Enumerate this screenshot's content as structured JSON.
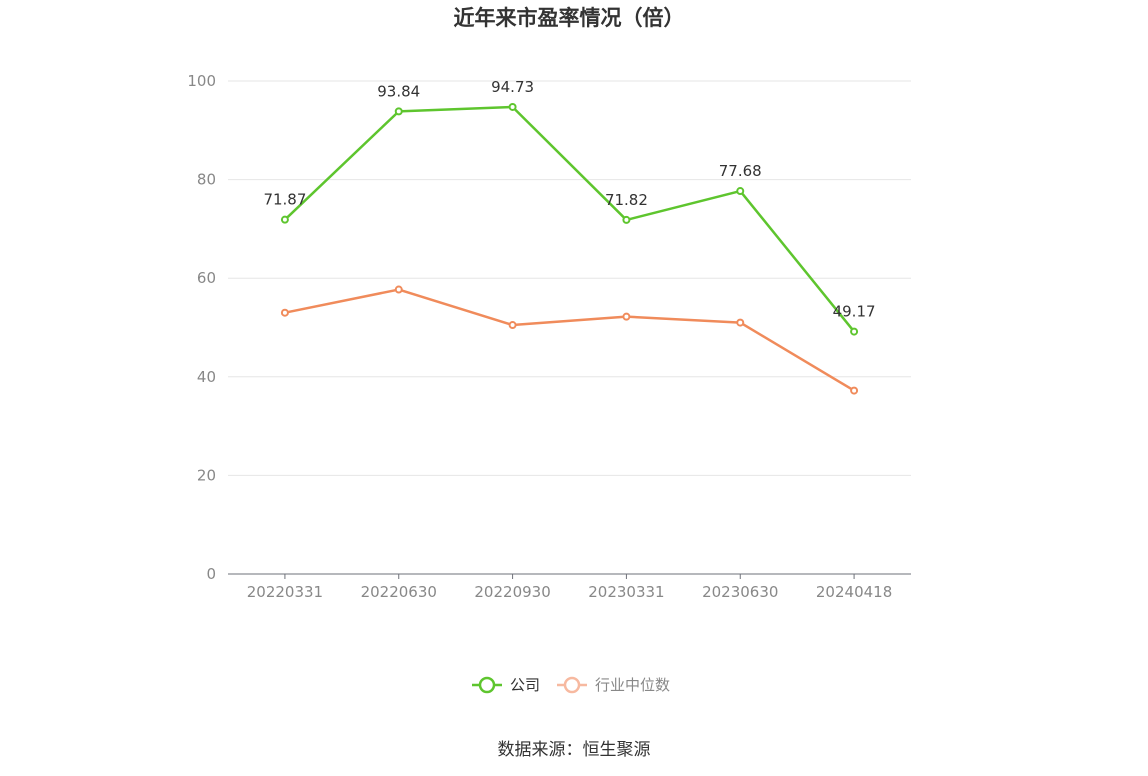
{
  "chart_data": {
    "type": "line",
    "title": "近年来市盈率情况（倍）",
    "categories": [
      "20220331",
      "20220630",
      "20220930",
      "20230331",
      "20230630",
      "20240418"
    ],
    "ylim": [
      0,
      100
    ],
    "yticks": [
      0,
      20,
      40,
      60,
      80,
      100
    ],
    "grid": true,
    "legend_position": "bottom",
    "series": [
      {
        "name": "公司",
        "color": "#5ec52e",
        "values": [
          71.87,
          93.84,
          94.73,
          71.82,
          77.68,
          49.17
        ],
        "labels_shown": true
      },
      {
        "name": "行业中位数",
        "color": "#f08b5b",
        "values": [
          53.0,
          57.7,
          50.5,
          52.2,
          51.0,
          37.2
        ],
        "labels_shown": false
      }
    ],
    "legend_inactive_color": "#f7b9a0",
    "source": "数据来源：恒生聚源"
  }
}
